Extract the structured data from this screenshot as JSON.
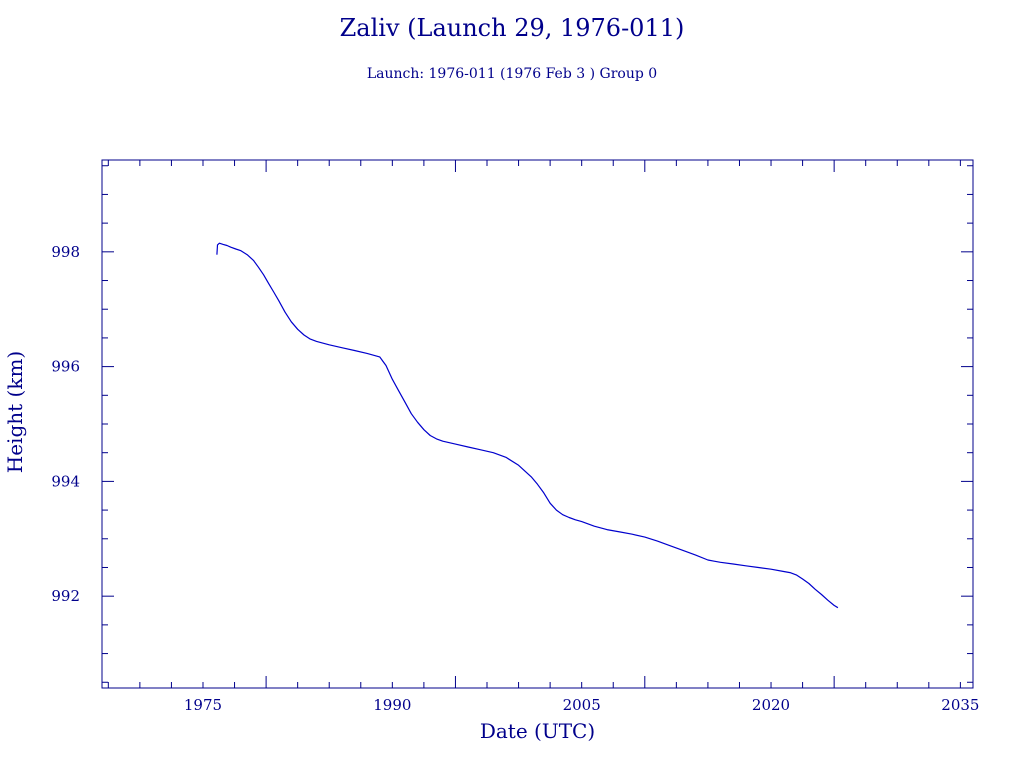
{
  "title": "Zaliv (Launch 29, 1976-011)",
  "subtitle": "Launch: 1976-011  (1976 Feb  3 )  Group 0",
  "colors": {
    "axis": "#00008b",
    "series": "#0000cd",
    "background": "#ffffff"
  },
  "chart_data": {
    "type": "line",
    "title": "Zaliv (Launch 29, 1976-011)",
    "subtitle": "Launch: 1976-011  (1976 Feb  3 )  Group 0",
    "xlabel": "Date (UTC)",
    "ylabel": "Height (km)",
    "xlim": [
      1967,
      2036
    ],
    "ylim": [
      990.4,
      999.6
    ],
    "x_ticks": [
      1975,
      1990,
      2005,
      2020,
      2035
    ],
    "y_ticks": [
      992,
      994,
      996,
      998
    ],
    "x_tick_labels": [
      "1975",
      "1990",
      "2005",
      "2020",
      "2035"
    ],
    "y_tick_labels": [
      "992",
      "994",
      "996",
      "998"
    ],
    "grid": false,
    "series": [
      {
        "x": [
          1976.1,
          1976.15,
          1976.3,
          1976.6,
          1976.9,
          1977.2,
          1977.6,
          1978.0,
          1978.5,
          1979.0,
          1979.4,
          1979.8,
          1980.2,
          1980.6,
          1981.0,
          1981.5,
          1982.0,
          1982.5,
          1983.0,
          1983.5,
          1984.0,
          1985.0,
          1986.0,
          1987.0,
          1988.0,
          1989.0,
          1989.5,
          1990.0,
          1990.5,
          1991.0,
          1991.5,
          1992.0,
          1992.5,
          1993.0,
          1993.5,
          1994.0,
          1995.0,
          1996.0,
          1997.0,
          1998.0,
          1999.0,
          2000.0,
          2001.0,
          2001.5,
          2002.0,
          2002.5,
          2003.0,
          2003.5,
          2004.0,
          2004.5,
          2005.0,
          2006.0,
          2007.0,
          2008.0,
          2009.0,
          2010.0,
          2011.0,
          2012.0,
          2013.0,
          2014.0,
          2015.0,
          2015.5,
          2016.0,
          2017.0,
          2018.0,
          2019.0,
          2020.0,
          2021.0,
          2021.5,
          2022.0,
          2022.5,
          2023.0,
          2023.5,
          2024.0,
          2024.5,
          2025.0,
          2025.3
        ],
        "y": [
          997.95,
          998.12,
          998.15,
          998.13,
          998.11,
          998.08,
          998.05,
          998.02,
          997.95,
          997.85,
          997.73,
          997.6,
          997.45,
          997.3,
          997.15,
          996.95,
          996.78,
          996.65,
          996.55,
          996.48,
          996.44,
          996.38,
          996.33,
          996.28,
          996.23,
          996.17,
          996.02,
          995.78,
          995.58,
          995.38,
          995.18,
          995.03,
          994.9,
          994.8,
          994.74,
          994.7,
          994.65,
          994.6,
          994.55,
          994.5,
          994.42,
          994.28,
          994.08,
          993.95,
          993.8,
          993.62,
          993.5,
          993.42,
          993.37,
          993.33,
          993.3,
          993.22,
          993.16,
          993.12,
          993.08,
          993.03,
          992.96,
          992.88,
          992.8,
          992.72,
          992.63,
          992.61,
          992.59,
          992.56,
          992.53,
          992.5,
          992.47,
          992.43,
          992.41,
          992.37,
          992.3,
          992.22,
          992.12,
          992.03,
          991.93,
          991.84,
          991.8
        ]
      }
    ]
  }
}
